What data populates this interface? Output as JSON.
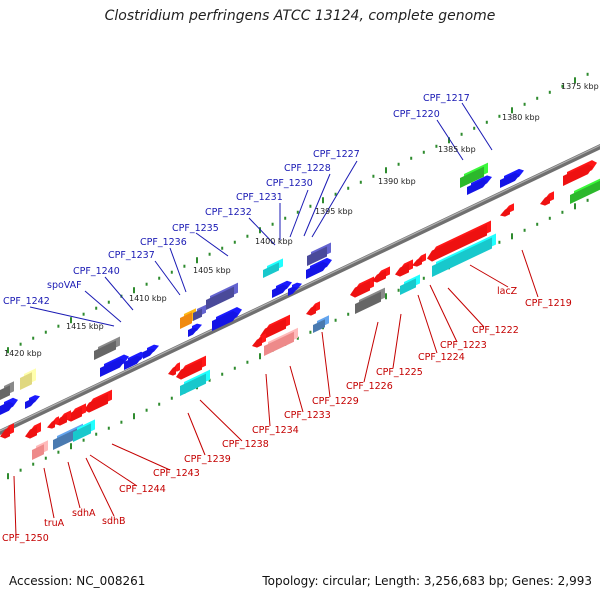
{
  "title": "Clostridium perfringens ATCC 13124, complete genome",
  "footer": {
    "accession": "Accession: NC_008261",
    "topology": "Topology: circular; Length: 3,256,683 bp; Genes: 2,993"
  },
  "colors": {
    "backbone": "#808080",
    "top_label": "#1a1ab4",
    "bottom_label": "#c40000",
    "tick": "#2e8b2e",
    "gene_blue": "#1414e6",
    "gene_red": "#ee1111",
    "gene_cyan": "#18c8cc",
    "gene_gray": "#666666",
    "gene_purple": "#4a4a9a",
    "gene_green": "#2cb82c",
    "gene_pink": "#ee8a8a",
    "gene_orange": "#f08a10",
    "gene_steel": "#4a7ab0",
    "gene_yellow": "#e0d880"
  },
  "kbp_labels": [
    "1375 kbp",
    "1380 kbp",
    "1385 kbp",
    "1390 kbp",
    "1395 kbp",
    "1400 kbp",
    "1405 kbp",
    "1410 kbp",
    "1415 kbp",
    "1420 kbp"
  ],
  "top_labels": [
    "CPF_1217",
    "CPF_1220",
    "CPF_1227",
    "CPF_1228",
    "CPF_1230",
    "CPF_1231",
    "CPF_1232",
    "CPF_1235",
    "CPF_1236",
    "CPF_1237",
    "CPF_1240",
    "spoVAF",
    "CPF_1242"
  ],
  "bottom_labels": [
    "CPF_1219",
    "lacZ",
    "CPF_1222",
    "CPF_1223",
    "CPF_1224",
    "CPF_1225",
    "CPF_1226",
    "CPF_1229",
    "CPF_1233",
    "CPF_1234",
    "CPF_1238",
    "CPF_1239",
    "CPF_1243",
    "CPF_1244",
    "sdhB",
    "sdhA",
    "truA",
    "CPF_1250"
  ]
}
